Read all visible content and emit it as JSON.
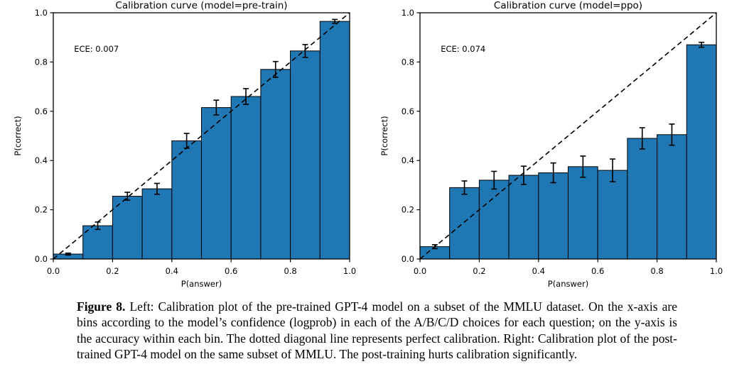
{
  "page": {
    "background_color": "#ffffff"
  },
  "caption": {
    "label": "Figure 8.",
    "text": " Left: Calibration plot of the pre-trained GPT-4 model on a subset of the MMLU dataset. On the x-axis are bins according to the model’s confidence (logprob) in each of the A/B/C/D choices for each question; on the y-axis is the accuracy within each bin. The dotted diagonal line represents perfect calibration. Right: Calibration plot of the post-trained GPT-4 model on the same subset of MMLU. The post-training hurts calibration significantly."
  },
  "chart_data": [
    {
      "type": "bar",
      "title": "Calibration curve (model=pre-train)",
      "annotation": "ECE: 0.007",
      "xlabel": "P(answer)",
      "ylabel": "P(correct)",
      "xlim": [
        0.0,
        1.0
      ],
      "ylim": [
        0.0,
        1.0
      ],
      "xticks": [
        0.0,
        0.2,
        0.4,
        0.6,
        0.8,
        1.0
      ],
      "yticks": [
        0.0,
        0.2,
        0.4,
        0.6,
        0.8,
        1.0
      ],
      "bin_width": 0.1,
      "bin_centers": [
        0.05,
        0.15,
        0.25,
        0.35,
        0.45,
        0.55,
        0.65,
        0.75,
        0.85,
        0.95
      ],
      "values": [
        0.02,
        0.135,
        0.255,
        0.285,
        0.48,
        0.615,
        0.66,
        0.77,
        0.845,
        0.965
      ],
      "errors": [
        0.004,
        0.015,
        0.016,
        0.022,
        0.03,
        0.03,
        0.032,
        0.032,
        0.026,
        0.008
      ],
      "diagonal_line": "dashed y=x (perfect calibration)",
      "grid": false,
      "legend": false,
      "bar_color": "#1f77b4",
      "bar_edge_color": "#000000",
      "error_bar_color": "#000000",
      "diagonal_color": "#000000"
    },
    {
      "type": "bar",
      "title": "Calibration curve (model=ppo)",
      "annotation": "ECE: 0.074",
      "xlabel": "P(answer)",
      "ylabel": "P(correct)",
      "xlim": [
        0.0,
        1.0
      ],
      "ylim": [
        0.0,
        1.0
      ],
      "xticks": [
        0.0,
        0.2,
        0.4,
        0.6,
        0.8,
        1.0
      ],
      "yticks": [
        0.0,
        0.2,
        0.4,
        0.6,
        0.8,
        1.0
      ],
      "bin_width": 0.1,
      "bin_centers": [
        0.05,
        0.15,
        0.25,
        0.35,
        0.45,
        0.55,
        0.65,
        0.75,
        0.85,
        0.95
      ],
      "values": [
        0.05,
        0.29,
        0.32,
        0.34,
        0.35,
        0.375,
        0.36,
        0.49,
        0.505,
        0.87
      ],
      "errors": [
        0.008,
        0.027,
        0.036,
        0.037,
        0.04,
        0.043,
        0.046,
        0.043,
        0.043,
        0.01
      ],
      "diagonal_line": "dashed y=x (perfect calibration)",
      "grid": false,
      "legend": false,
      "bar_color": "#1f77b4",
      "bar_edge_color": "#000000",
      "error_bar_color": "#000000",
      "diagonal_color": "#000000"
    }
  ]
}
